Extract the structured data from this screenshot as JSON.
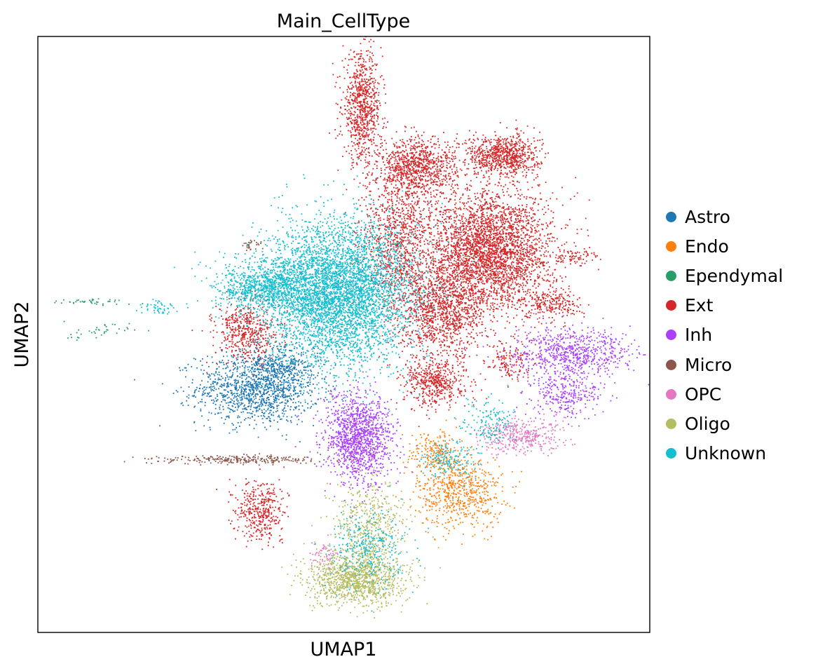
{
  "chart_data": {
    "type": "scatter",
    "title": "Main_CellType",
    "xlabel": "UMAP1",
    "ylabel": "UMAP2",
    "xticks": "none",
    "yticks": "none",
    "grid": false,
    "legend_position": "right",
    "xlim": [
      0,
      100
    ],
    "ylim": [
      0,
      100
    ],
    "series": [
      {
        "name": "Astro",
        "color": "#1f77b4",
        "clusters": [
          {
            "cx": 36.0,
            "cy": 41.0,
            "sx": 5.0,
            "sy": 3.0,
            "n": 1300
          },
          {
            "cx": 40.0,
            "cy": 45.0,
            "sx": 3.0,
            "sy": 2.0,
            "n": 250
          }
        ]
      },
      {
        "name": "Endo",
        "color": "#ff7f0e",
        "clusters": [
          {
            "cx": 69.0,
            "cy": 23.5,
            "sx": 3.5,
            "sy": 3.0,
            "n": 650
          },
          {
            "cx": 65.0,
            "cy": 30.0,
            "sx": 2.5,
            "sy": 2.0,
            "n": 220
          }
        ]
      },
      {
        "name": "Ependymal",
        "color": "#279e68",
        "clusters": [
          {
            "cx": 9.5,
            "cy": 55.5,
            "sx": 3.0,
            "sy": 0.25,
            "n": 40
          },
          {
            "cx": 9.0,
            "cy": 50.5,
            "sx": 3.0,
            "sy": 0.7,
            "n": 40
          }
        ]
      },
      {
        "name": "Ext",
        "color": "#d62728",
        "clusters": [
          {
            "cx": 53.0,
            "cy": 88.0,
            "sx": 1.6,
            "sy": 4.5,
            "n": 800
          },
          {
            "cx": 62.0,
            "cy": 78.0,
            "sx": 3.2,
            "sy": 2.5,
            "n": 900
          },
          {
            "cx": 76.0,
            "cy": 80.0,
            "sx": 3.0,
            "sy": 1.8,
            "n": 800
          },
          {
            "cx": 74.0,
            "cy": 64.0,
            "sx": 5.0,
            "sy": 5.0,
            "n": 3200
          },
          {
            "cx": 66.0,
            "cy": 54.0,
            "sx": 3.5,
            "sy": 4.0,
            "n": 1200
          },
          {
            "cx": 65.0,
            "cy": 42.0,
            "sx": 2.5,
            "sy": 2.0,
            "n": 500
          },
          {
            "cx": 59.0,
            "cy": 66.0,
            "sx": 3.0,
            "sy": 6.0,
            "n": 1000
          },
          {
            "cx": 34.0,
            "cy": 50.5,
            "sx": 2.5,
            "sy": 2.5,
            "n": 500
          },
          {
            "cx": 36.5,
            "cy": 20.5,
            "sx": 2.0,
            "sy": 2.5,
            "n": 400
          },
          {
            "cx": 84.0,
            "cy": 55.0,
            "sx": 2.5,
            "sy": 1.2,
            "n": 220
          },
          {
            "cx": 87.5,
            "cy": 63.0,
            "sx": 2.0,
            "sy": 0.8,
            "n": 80
          },
          {
            "cx": 77.0,
            "cy": 45.0,
            "sx": 2.0,
            "sy": 2.0,
            "n": 150
          }
        ]
      },
      {
        "name": "Inh",
        "color": "#aa40fc",
        "clusters": [
          {
            "cx": 52.5,
            "cy": 32.5,
            "sx": 2.8,
            "sy": 3.8,
            "n": 1300
          },
          {
            "cx": 87.5,
            "cy": 47.0,
            "sx": 5.0,
            "sy": 2.0,
            "n": 700
          },
          {
            "cx": 86.0,
            "cy": 40.0,
            "sx": 3.0,
            "sy": 2.0,
            "n": 300
          }
        ]
      },
      {
        "name": "Micro",
        "color": "#8c564b",
        "clusters": [
          {
            "cx": 33.0,
            "cy": 29.0,
            "sx": 7.0,
            "sy": 0.35,
            "n": 260
          },
          {
            "cx": 35.0,
            "cy": 65.0,
            "sx": 0.8,
            "sy": 0.5,
            "n": 30
          }
        ]
      },
      {
        "name": "OPC",
        "color": "#e377c2",
        "clusters": [
          {
            "cx": 79.0,
            "cy": 33.0,
            "sx": 3.5,
            "sy": 1.5,
            "n": 380
          },
          {
            "cx": 47.0,
            "cy": 13.0,
            "sx": 1.2,
            "sy": 1.2,
            "n": 60
          }
        ]
      },
      {
        "name": "Oligo",
        "color": "#b5bd61",
        "clusters": [
          {
            "cx": 52.0,
            "cy": 9.0,
            "sx": 4.0,
            "sy": 2.2,
            "n": 1200
          },
          {
            "cx": 54.0,
            "cy": 18.0,
            "sx": 3.0,
            "sy": 4.0,
            "n": 500
          }
        ]
      },
      {
        "name": "Unknown",
        "color": "#17becf",
        "clusters": [
          {
            "cx": 49.0,
            "cy": 57.0,
            "sx": 6.0,
            "sy": 6.0,
            "n": 4800
          },
          {
            "cx": 37.0,
            "cy": 58.0,
            "sx": 4.0,
            "sy": 2.0,
            "n": 900
          },
          {
            "cx": 54.0,
            "cy": 14.0,
            "sx": 3.0,
            "sy": 3.0,
            "n": 300
          },
          {
            "cx": 20.0,
            "cy": 54.5,
            "sx": 1.5,
            "sy": 0.5,
            "n": 50
          },
          {
            "cx": 74.0,
            "cy": 35.0,
            "sx": 2.0,
            "sy": 2.0,
            "n": 150
          },
          {
            "cx": 67.0,
            "cy": 29.0,
            "sx": 2.5,
            "sy": 1.5,
            "n": 150
          }
        ]
      }
    ]
  }
}
